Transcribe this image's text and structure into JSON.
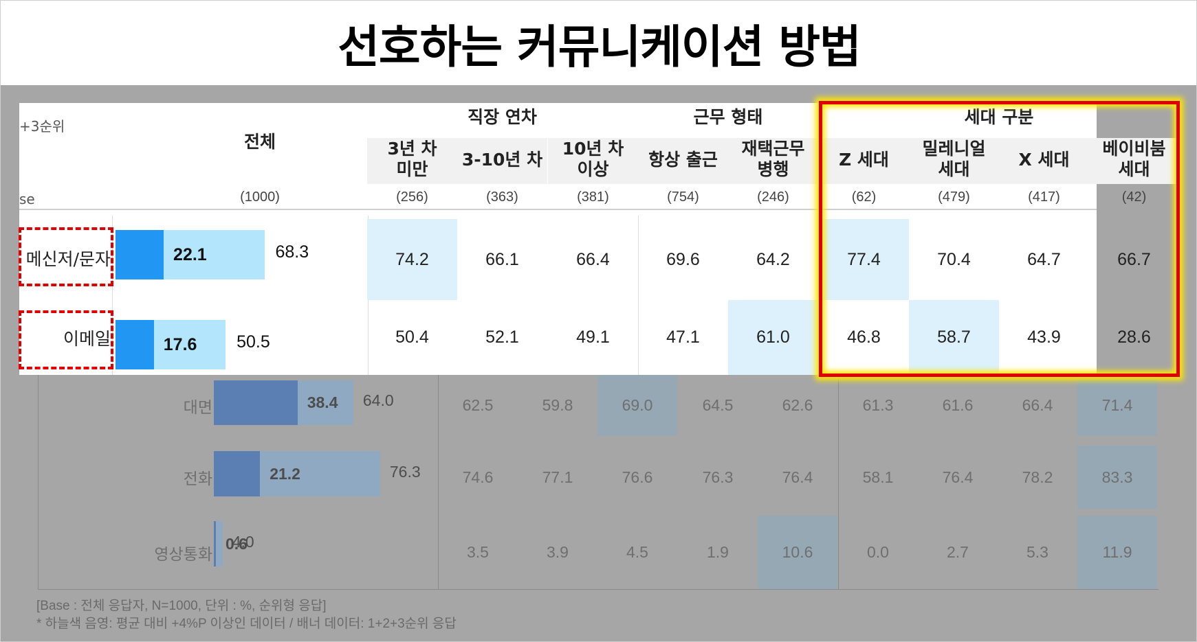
{
  "title": "선호하는 커뮤니케이션 방법",
  "colors": {
    "sky_highlight": "#dcf1fb",
    "bar_rank1": "#2196f3",
    "bar_rank123": "#b3e5fc",
    "red_box": "#e00000",
    "glow": "#ffe600"
  },
  "header": {
    "row_label_top": "+3순위",
    "row_label_base": "se",
    "total_label": "전체",
    "total_base": "(1000)",
    "groups": [
      {
        "name": "직장 연차",
        "columns": [
          {
            "label": "3년 차\n미만",
            "base": "(256)"
          },
          {
            "label": "3-10년 차",
            "base": "(363)"
          },
          {
            "label": "10년 차\n이상",
            "base": "(381)"
          }
        ]
      },
      {
        "name": "근무 형태",
        "columns": [
          {
            "label": "항상 출근",
            "base": "(754)"
          },
          {
            "label": "재택근무\n병행",
            "base": "(246)"
          }
        ]
      },
      {
        "name": "세대 구분",
        "columns": [
          {
            "label": "Z 세대",
            "base": "(62)"
          },
          {
            "label": "밀레니얼\n세대",
            "base": "(479)"
          },
          {
            "label": "X 세대",
            "base": "(417)"
          },
          {
            "label": "베이비붐\n세대",
            "base": "(42)"
          }
        ]
      }
    ]
  },
  "chart_data": {
    "type": "table",
    "columns": [
      "3년 차 미만",
      "3-10년 차",
      "10년 차 이상",
      "항상 출근",
      "재택근무 병행",
      "Z 세대",
      "밀레니얼 세대",
      "X 세대",
      "베이비붐 세대"
    ],
    "rows": [
      {
        "label": "메신저/문자",
        "first": "22.1",
        "total": "68.3",
        "first_value": 22.1,
        "total_value": 68.3,
        "values": [
          "74.2",
          "66.1",
          "66.4",
          "69.6",
          "64.2",
          "77.4",
          "70.4",
          "64.7",
          "66.7"
        ],
        "highlight": [
          true,
          false,
          false,
          false,
          false,
          true,
          false,
          false,
          false
        ]
      },
      {
        "label": "이메일",
        "first": "17.6",
        "total": "50.5",
        "first_value": 17.6,
        "total_value": 50.5,
        "values": [
          "50.4",
          "52.1",
          "49.1",
          "47.1",
          "61.0",
          "46.8",
          "58.7",
          "43.9",
          "28.6"
        ],
        "highlight": [
          false,
          false,
          false,
          false,
          true,
          false,
          true,
          false,
          false
        ]
      },
      {
        "label": "대면",
        "first": "38.4",
        "total": "64.0",
        "first_value": 38.4,
        "total_value": 64.0,
        "values": [
          "62.5",
          "59.8",
          "69.0",
          "64.5",
          "62.6",
          "61.3",
          "61.6",
          "66.4",
          "71.4"
        ],
        "highlight": [
          false,
          false,
          true,
          false,
          false,
          false,
          false,
          false,
          true
        ]
      },
      {
        "label": "전화",
        "first": "21.2",
        "total": "76.3",
        "first_value": 21.2,
        "total_value": 76.3,
        "values": [
          "74.6",
          "77.1",
          "76.6",
          "76.3",
          "76.4",
          "58.1",
          "76.4",
          "78.2",
          "83.3"
        ],
        "highlight": [
          false,
          false,
          false,
          false,
          false,
          false,
          false,
          false,
          true
        ]
      },
      {
        "label": "영상통화",
        "first": "0.6",
        "total": "4.0",
        "first_value": 0.6,
        "total_value": 4.0,
        "values": [
          "3.5",
          "3.9",
          "4.5",
          "1.9",
          "10.6",
          "0.0",
          "2.7",
          "5.3",
          "11.9"
        ],
        "highlight": [
          false,
          false,
          false,
          false,
          true,
          false,
          false,
          false,
          true
        ]
      }
    ]
  },
  "notes": {
    "base": "[Base : 전체 응답자, N=1000, 단위 : %, 순위형 응답]",
    "legend": "* 하늘색 음영: 평균 대비 +4%P 이상인 데이터 / 배너 데이터: 1+2+3순위 응답"
  }
}
